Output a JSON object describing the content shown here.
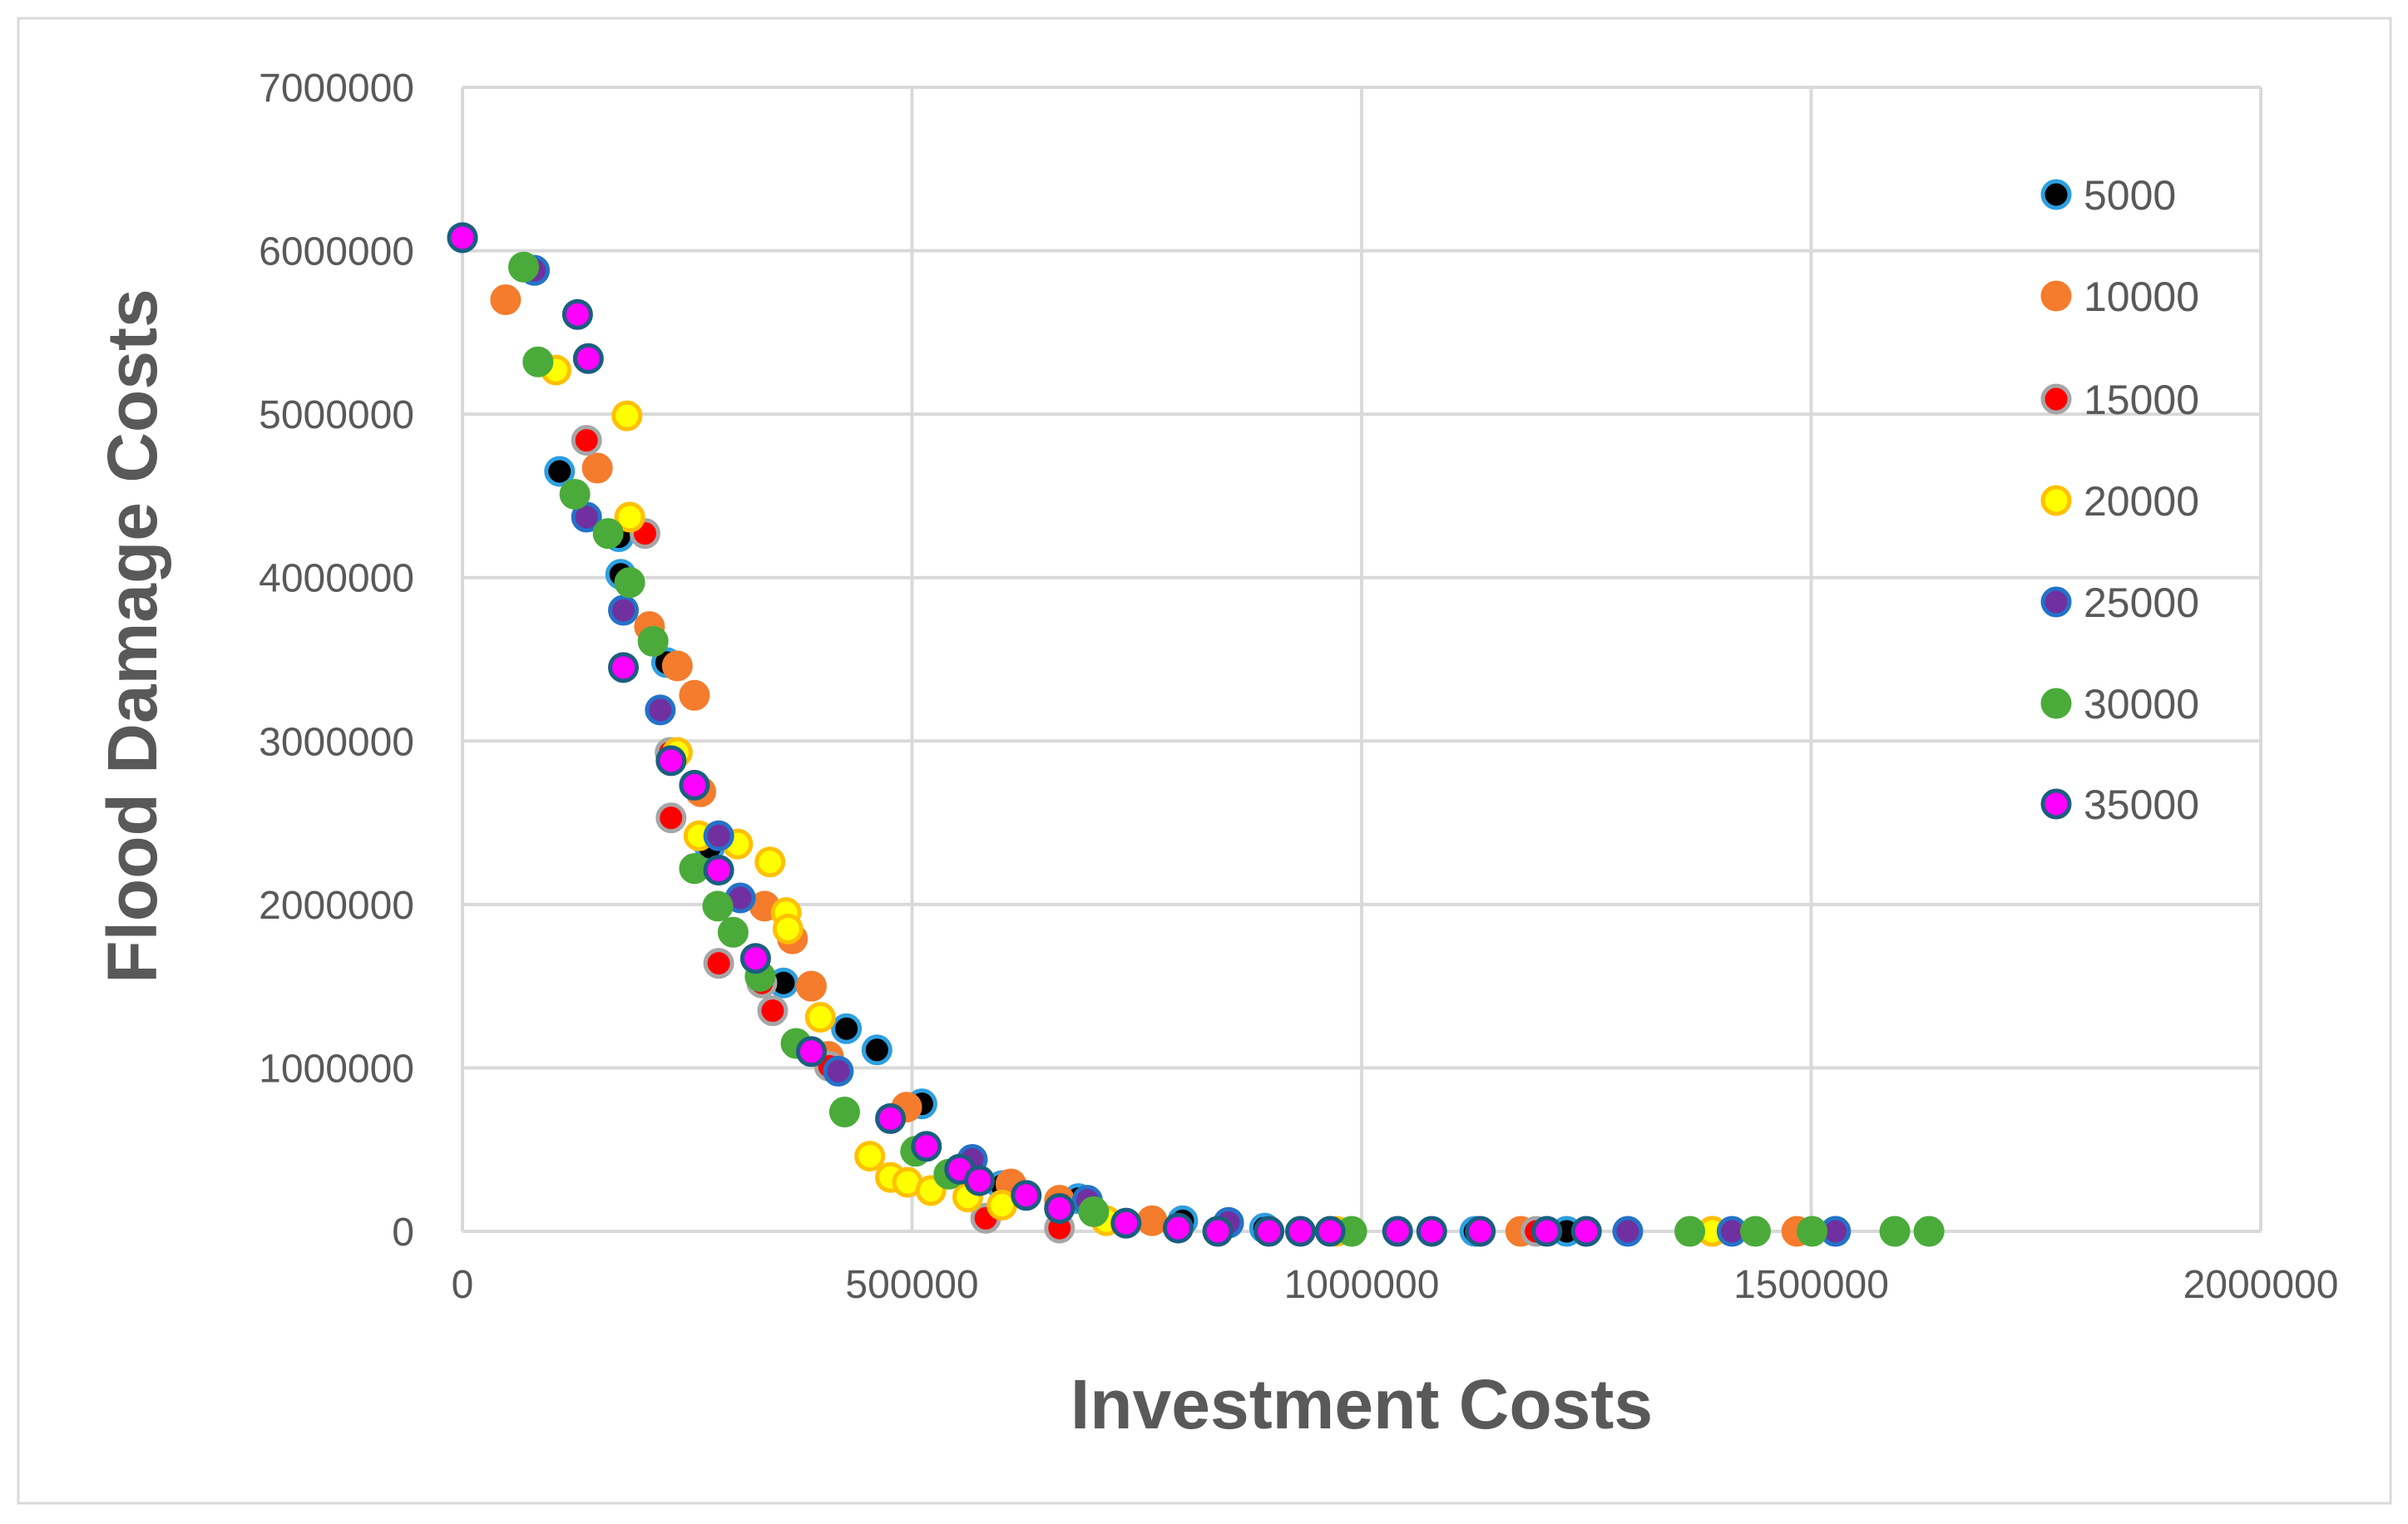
{
  "chart_data": {
    "type": "scatter",
    "title": "",
    "xlabel": "Investment Costs",
    "ylabel": "Flood Damage Costs",
    "xlim": [
      0,
      2000000
    ],
    "ylim": [
      0,
      7000000
    ],
    "x_ticks": [
      "0",
      "500000",
      "1000000",
      "1500000",
      "2000000"
    ],
    "y_ticks": [
      "0",
      "1000000",
      "2000000",
      "3000000",
      "4000000",
      "5000000",
      "6000000",
      "7000000"
    ],
    "grid": true,
    "legend_position": "right",
    "series": [
      {
        "name": "5000",
        "fill": "#000000",
        "stroke": "#2e9fe0",
        "points": [
          [
            0,
            6080000
          ],
          [
            80000,
            5880000
          ],
          [
            108000,
            4650000
          ],
          [
            174000,
            4250000
          ],
          [
            176000,
            4020000
          ],
          [
            227000,
            3480000
          ],
          [
            275000,
            2350000
          ],
          [
            357000,
            1520000
          ],
          [
            427000,
            1240000
          ],
          [
            461000,
            1110000
          ],
          [
            511000,
            780000
          ],
          [
            600000,
            280000
          ],
          [
            685000,
            200000
          ],
          [
            801000,
            65000
          ],
          [
            852000,
            50000
          ],
          [
            892000,
            20000
          ],
          [
            1126000,
            0
          ],
          [
            1228000,
            0
          ],
          [
            1527000,
            0
          ]
        ]
      },
      {
        "name": "10000",
        "fill": "#f47c2c",
        "stroke": "#f47c2c",
        "points": [
          [
            48000,
            5700000
          ],
          [
            150000,
            4670000
          ],
          [
            208000,
            3700000
          ],
          [
            239000,
            3460000
          ],
          [
            258000,
            3280000
          ],
          [
            265000,
            2690000
          ],
          [
            336000,
            1990000
          ],
          [
            367000,
            1790000
          ],
          [
            388000,
            1500000
          ],
          [
            407000,
            1070000
          ],
          [
            494000,
            760000
          ],
          [
            610000,
            290000
          ],
          [
            664000,
            190000
          ],
          [
            767000,
            65000
          ],
          [
            1177000,
            0
          ],
          [
            1390000,
            0
          ],
          [
            1484000,
            0
          ]
        ]
      },
      {
        "name": "15000",
        "fill": "#ff0000",
        "stroke": "#a6a6a6",
        "points": [
          [
            138000,
            4840000
          ],
          [
            203000,
            4270000
          ],
          [
            231000,
            2930000
          ],
          [
            232000,
            2530000
          ],
          [
            285000,
            1640000
          ],
          [
            333000,
            1520000
          ],
          [
            345000,
            1350000
          ],
          [
            408000,
            1010000
          ],
          [
            582000,
            80000
          ],
          [
            664000,
            20000
          ],
          [
            1194000,
            0
          ]
        ]
      },
      {
        "name": "20000",
        "fill": "#ffff00",
        "stroke": "#ffc000",
        "points": [
          [
            104000,
            5270000
          ],
          [
            183000,
            4990000
          ],
          [
            186000,
            4370000
          ],
          [
            239000,
            2930000
          ],
          [
            263000,
            2420000
          ],
          [
            306000,
            2370000
          ],
          [
            342000,
            2260000
          ],
          [
            360000,
            1950000
          ],
          [
            362000,
            1850000
          ],
          [
            398000,
            1310000
          ],
          [
            453000,
            460000
          ],
          [
            476000,
            330000
          ],
          [
            495000,
            300000
          ],
          [
            521000,
            250000
          ],
          [
            562000,
            210000
          ],
          [
            600000,
            160000
          ],
          [
            716000,
            65000
          ],
          [
            972000,
            0
          ],
          [
            1390000,
            0
          ]
        ]
      },
      {
        "name": "25000",
        "fill": "#7030a0",
        "stroke": "#2472c8",
        "points": [
          [
            80000,
            5880000
          ],
          [
            138000,
            4370000
          ],
          [
            179000,
            3800000
          ],
          [
            220000,
            3190000
          ],
          [
            285000,
            2420000
          ],
          [
            309000,
            2040000
          ],
          [
            418000,
            980000
          ],
          [
            567000,
            440000
          ],
          [
            695000,
            190000
          ],
          [
            852000,
            55000
          ],
          [
            1296000,
            0
          ],
          [
            1412000,
            0
          ],
          [
            1527000,
            0
          ]
        ]
      },
      {
        "name": "30000",
        "fill": "#4aab3a",
        "stroke": "#4aab3a",
        "points": [
          [
            68000,
            5900000
          ],
          [
            84000,
            5320000
          ],
          [
            125000,
            4510000
          ],
          [
            162000,
            4270000
          ],
          [
            186000,
            3970000
          ],
          [
            212000,
            3610000
          ],
          [
            258000,
            2220000
          ],
          [
            284000,
            1990000
          ],
          [
            301000,
            1830000
          ],
          [
            331000,
            1560000
          ],
          [
            371000,
            1150000
          ],
          [
            425000,
            730000
          ],
          [
            504000,
            490000
          ],
          [
            541000,
            350000
          ],
          [
            702000,
            120000
          ],
          [
            989000,
            0
          ],
          [
            1365000,
            0
          ],
          [
            1438000,
            0
          ],
          [
            1501000,
            0
          ],
          [
            1593000,
            0
          ],
          [
            1631000,
            0
          ]
        ]
      },
      {
        "name": "35000",
        "fill": "#ff00ff",
        "stroke": "#1a5e80",
        "points": [
          [
            0,
            6080000
          ],
          [
            128000,
            5610000
          ],
          [
            140000,
            5340000
          ],
          [
            179000,
            3450000
          ],
          [
            232000,
            2880000
          ],
          [
            258000,
            2730000
          ],
          [
            285000,
            2210000
          ],
          [
            326000,
            1670000
          ],
          [
            388000,
            1100000
          ],
          [
            476000,
            690000
          ],
          [
            516000,
            520000
          ],
          [
            553000,
            380000
          ],
          [
            575000,
            310000
          ],
          [
            627000,
            220000
          ],
          [
            664000,
            140000
          ],
          [
            738000,
            50000
          ],
          [
            796000,
            20000
          ],
          [
            840000,
            0
          ],
          [
            897000,
            0
          ],
          [
            932000,
            0
          ],
          [
            965000,
            0
          ],
          [
            1040000,
            0
          ],
          [
            1078000,
            0
          ],
          [
            1132000,
            0
          ],
          [
            1206000,
            0
          ],
          [
            1250000,
            0
          ]
        ]
      }
    ]
  }
}
